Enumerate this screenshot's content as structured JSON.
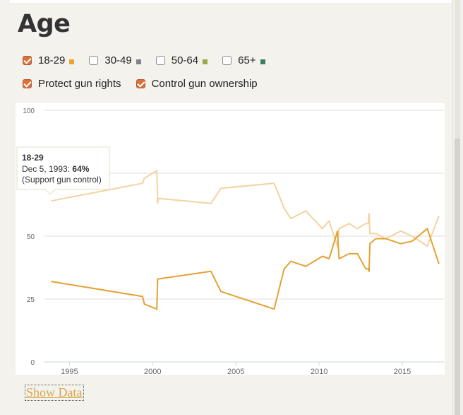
{
  "title": "Age",
  "filters": [
    {
      "label": "18-29",
      "checked": true,
      "color": "#e8a33a"
    },
    {
      "label": "30-49",
      "checked": false,
      "color": "#8a7f8c"
    },
    {
      "label": "50-64",
      "checked": false,
      "color": "#9aa94a"
    },
    {
      "label": "65+",
      "checked": false,
      "color": "#3d7d62"
    }
  ],
  "toggles": [
    {
      "label": "Protect gun rights",
      "checked": true
    },
    {
      "label": "Control gun ownership",
      "checked": true
    }
  ],
  "show_data_label": "Show Data",
  "tooltip": {
    "series": "18-29",
    "date": "Dec 5, 1993:",
    "value": "64%",
    "note": "(Support gun control)"
  },
  "chart_data": {
    "type": "line",
    "xlim": [
      1993.5,
      2017.5
    ],
    "ylim": [
      0,
      100
    ],
    "xticks": [
      1995,
      2000,
      2005,
      2010,
      2015
    ],
    "yticks": [
      0,
      25,
      50,
      75,
      100
    ],
    "grid": true,
    "series": [
      {
        "color": "#f3d3a1",
        "points": [
          [
            1993.9,
            64
          ],
          [
            1999.4,
            71
          ],
          [
            1999.5,
            73
          ],
          [
            2000.25,
            76
          ],
          [
            2000.3,
            63
          ],
          [
            2000.35,
            65
          ],
          [
            2003.5,
            63
          ],
          [
            2004.1,
            69
          ],
          [
            2007.3,
            71
          ],
          [
            2007.9,
            61
          ],
          [
            2008.3,
            57
          ],
          [
            2009.2,
            60
          ],
          [
            2010.2,
            53
          ],
          [
            2010.6,
            56
          ],
          [
            2011.1,
            46
          ],
          [
            2011.2,
            53
          ],
          [
            2011.8,
            55
          ],
          [
            2012.3,
            53
          ],
          [
            2012.8,
            55
          ],
          [
            2012.95,
            55
          ],
          [
            2013.0,
            59
          ],
          [
            2013.05,
            51
          ],
          [
            2013.4,
            51
          ],
          [
            2014.0,
            49
          ],
          [
            2014.9,
            52
          ],
          [
            2015.6,
            50
          ],
          [
            2016.5,
            46
          ],
          [
            2017.2,
            58
          ]
        ]
      },
      {
        "color": "#e3a235",
        "points": [
          [
            1993.9,
            32
          ],
          [
            1999.4,
            26
          ],
          [
            1999.5,
            23
          ],
          [
            2000.25,
            21
          ],
          [
            2000.3,
            33
          ],
          [
            2000.35,
            33
          ],
          [
            2003.5,
            36
          ],
          [
            2004.1,
            28
          ],
          [
            2007.3,
            21
          ],
          [
            2007.9,
            37
          ],
          [
            2008.3,
            40
          ],
          [
            2009.2,
            38
          ],
          [
            2010.2,
            42
          ],
          [
            2010.6,
            41
          ],
          [
            2011.1,
            52
          ],
          [
            2011.2,
            41
          ],
          [
            2011.8,
            43
          ],
          [
            2012.3,
            43
          ],
          [
            2012.8,
            37
          ],
          [
            2012.95,
            37
          ],
          [
            2013.0,
            36
          ],
          [
            2013.05,
            47
          ],
          [
            2013.4,
            49
          ],
          [
            2014.0,
            49
          ],
          [
            2014.9,
            47
          ],
          [
            2015.6,
            48
          ],
          [
            2016.5,
            53
          ],
          [
            2017.2,
            39
          ]
        ]
      }
    ]
  }
}
